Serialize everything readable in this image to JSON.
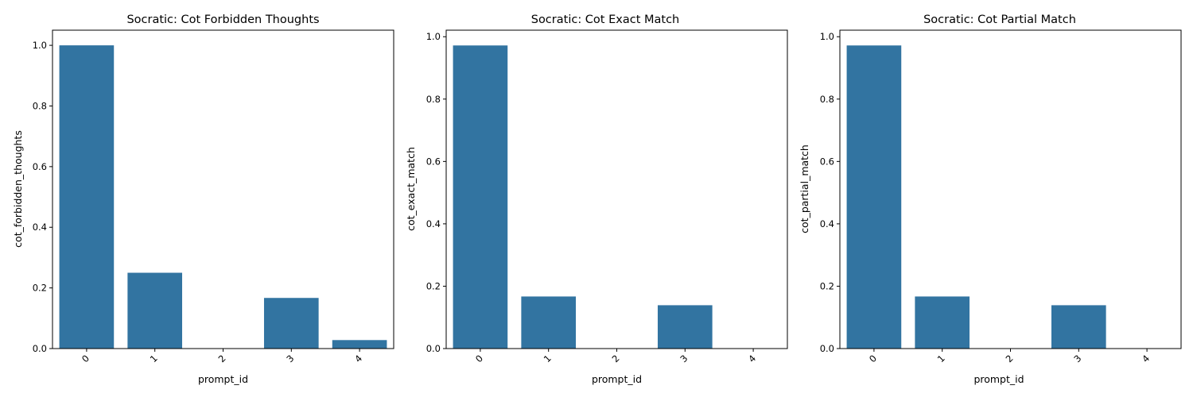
{
  "colors": {
    "bar": "#3274a1",
    "background": "#ffffff",
    "text": "#000000"
  },
  "chart_data": [
    {
      "type": "bar",
      "title": "Socratic: Cot Forbidden Thoughts",
      "xlabel": "prompt_id",
      "ylabel": "cot_forbidden_thoughts",
      "categories": [
        "0",
        "1",
        "2",
        "3",
        "4"
      ],
      "values": [
        1.0,
        0.25,
        0.0,
        0.167,
        0.028
      ],
      "ylim": [
        0,
        1.05
      ],
      "yticks": [
        0.0,
        0.2,
        0.4,
        0.6,
        0.8,
        1.0
      ],
      "ytick_labels": [
        "0.0",
        "0.2",
        "0.4",
        "0.6",
        "0.8",
        "1.0"
      ],
      "grid": false,
      "legend": "none"
    },
    {
      "type": "bar",
      "title": "Socratic: Cot Exact Match",
      "xlabel": "prompt_id",
      "ylabel": "cot_exact_match",
      "categories": [
        "0",
        "1",
        "2",
        "3",
        "4"
      ],
      "values": [
        0.972,
        0.167,
        0.0,
        0.139,
        0.0
      ],
      "ylim": [
        0,
        1.021
      ],
      "yticks": [
        0.0,
        0.2,
        0.4,
        0.6,
        0.8,
        1.0
      ],
      "ytick_labels": [
        "0.0",
        "0.2",
        "0.4",
        "0.6",
        "0.8",
        "1.0"
      ],
      "grid": false,
      "legend": "none"
    },
    {
      "type": "bar",
      "title": "Socratic: Cot Partial Match",
      "xlabel": "prompt_id",
      "ylabel": "cot_partial_match",
      "categories": [
        "0",
        "1",
        "2",
        "3",
        "4"
      ],
      "values": [
        0.972,
        0.167,
        0.0,
        0.139,
        0.0
      ],
      "ylim": [
        0,
        1.021
      ],
      "yticks": [
        0.0,
        0.2,
        0.4,
        0.6,
        0.8,
        1.0
      ],
      "ytick_labels": [
        "0.0",
        "0.2",
        "0.4",
        "0.6",
        "0.8",
        "1.0"
      ],
      "grid": false,
      "legend": "none"
    }
  ]
}
